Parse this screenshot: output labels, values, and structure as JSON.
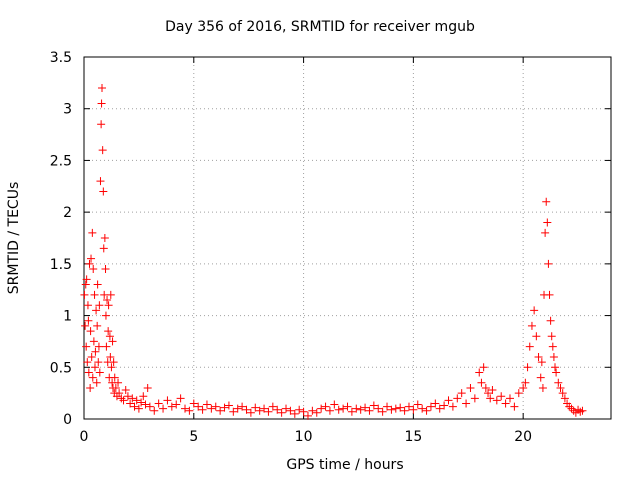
{
  "chart_data": {
    "type": "scatter",
    "title": "Day 356 of 2016, SRMTID for receiver mgub",
    "xlabel": "GPS time / hours",
    "ylabel": "SRMTID / TECUs",
    "xlim": [
      0,
      24
    ],
    "ylim": [
      0,
      3.5
    ],
    "xticks": [
      0,
      5,
      10,
      15,
      20
    ],
    "yticks": [
      0,
      0.5,
      1,
      1.5,
      2,
      2.5,
      3,
      3.5
    ],
    "ytick_labels": [
      "0",
      "0.5",
      "1",
      "1.5",
      "2",
      "2.5",
      "3",
      "3.5"
    ],
    "grid": true,
    "marker": "+",
    "color": "#ff0000",
    "series": [
      {
        "x": [
          0.02,
          0.05,
          0.08,
          0.1,
          0.12,
          0.15,
          0.18,
          0.2,
          0.22,
          0.25,
          0.28,
          0.3,
          0.32,
          0.35,
          0.38,
          0.4,
          0.42,
          0.45,
          0.48,
          0.5,
          0.52,
          0.55,
          0.58,
          0.6,
          0.62,
          0.65,
          0.68,
          0.7,
          0.72,
          0.75,
          0.78,
          0.8,
          0.82,
          0.85,
          0.88,
          0.9,
          0.92,
          0.95,
          0.98,
          1.0,
          1.02,
          1.05,
          1.08,
          1.1,
          1.12,
          1.15,
          1.18,
          1.2,
          1.22,
          1.25,
          1.28,
          1.3,
          1.32,
          1.35,
          1.38,
          1.4,
          1.45,
          1.5,
          1.55,
          1.6,
          1.7,
          1.8,
          1.9,
          2.0,
          2.1,
          2.2,
          2.3,
          2.4,
          2.5,
          2.6,
          2.7,
          2.8,
          2.9,
          3.0,
          3.2,
          3.4,
          3.6,
          3.8,
          4.0,
          4.2,
          4.4,
          4.6,
          4.8,
          5.0,
          5.2,
          5.4,
          5.6,
          5.8,
          6.0,
          6.2,
          6.4,
          6.6,
          6.8,
          7.0,
          7.2,
          7.4,
          7.6,
          7.8,
          8.0,
          8.2,
          8.4,
          8.6,
          8.8,
          9.0,
          9.2,
          9.4,
          9.6,
          9.8,
          10.0,
          10.2,
          10.4,
          10.6,
          10.8,
          11.0,
          11.2,
          11.4,
          11.6,
          11.8,
          12.0,
          12.2,
          12.4,
          12.6,
          12.8,
          13.0,
          13.2,
          13.4,
          13.6,
          13.8,
          14.0,
          14.2,
          14.4,
          14.6,
          14.8,
          15.0,
          15.2,
          15.4,
          15.6,
          15.8,
          16.0,
          16.2,
          16.4,
          16.6,
          16.8,
          17.0,
          17.2,
          17.4,
          17.6,
          17.8,
          18.0,
          18.1,
          18.2,
          18.3,
          18.4,
          18.5,
          18.6,
          18.8,
          19.0,
          19.2,
          19.4,
          19.6,
          19.8,
          20.0,
          20.1,
          20.2,
          20.3,
          20.4,
          20.5,
          20.6,
          20.7,
          20.8,
          20.85,
          20.9,
          20.95,
          21.0,
          21.05,
          21.1,
          21.15,
          21.2,
          21.25,
          21.3,
          21.35,
          21.4,
          21.45,
          21.5,
          21.6,
          21.7,
          21.8,
          21.9,
          22.0,
          22.1,
          22.2,
          22.3,
          22.4,
          22.5,
          22.6,
          22.7
        ],
        "y": [
          1.2,
          0.9,
          1.3,
          0.7,
          1.35,
          0.55,
          1.1,
          0.95,
          0.45,
          1.5,
          0.3,
          0.85,
          1.55,
          0.6,
          1.8,
          0.4,
          1.45,
          0.75,
          1.2,
          0.5,
          0.65,
          1.05,
          0.35,
          0.9,
          1.3,
          0.55,
          0.7,
          1.1,
          0.45,
          2.3,
          2.85,
          3.05,
          3.2,
          2.6,
          2.2,
          1.65,
          1.2,
          1.75,
          1.45,
          1.0,
          0.7,
          1.15,
          0.55,
          0.85,
          1.1,
          0.4,
          0.8,
          0.6,
          1.2,
          0.5,
          0.35,
          0.75,
          0.3,
          0.55,
          0.25,
          0.4,
          0.3,
          0.22,
          0.35,
          0.25,
          0.2,
          0.18,
          0.28,
          0.22,
          0.15,
          0.2,
          0.12,
          0.18,
          0.1,
          0.16,
          0.22,
          0.14,
          0.3,
          0.12,
          0.08,
          0.15,
          0.1,
          0.18,
          0.12,
          0.14,
          0.2,
          0.1,
          0.08,
          0.15,
          0.12,
          0.09,
          0.14,
          0.1,
          0.12,
          0.08,
          0.11,
          0.13,
          0.07,
          0.1,
          0.12,
          0.09,
          0.06,
          0.11,
          0.08,
          0.1,
          0.07,
          0.12,
          0.09,
          0.06,
          0.1,
          0.08,
          0.05,
          0.09,
          0.07,
          0.03,
          0.08,
          0.06,
          0.1,
          0.12,
          0.08,
          0.14,
          0.09,
          0.1,
          0.12,
          0.07,
          0.1,
          0.09,
          0.11,
          0.08,
          0.13,
          0.1,
          0.07,
          0.12,
          0.09,
          0.1,
          0.11,
          0.08,
          0.12,
          0.09,
          0.14,
          0.1,
          0.08,
          0.12,
          0.15,
          0.1,
          0.13,
          0.18,
          0.12,
          0.2,
          0.25,
          0.15,
          0.3,
          0.2,
          0.45,
          0.35,
          0.5,
          0.3,
          0.25,
          0.2,
          0.28,
          0.18,
          0.22,
          0.15,
          0.2,
          0.12,
          0.25,
          0.3,
          0.35,
          0.5,
          0.7,
          0.9,
          1.05,
          0.8,
          0.6,
          0.4,
          0.55,
          0.3,
          1.2,
          1.8,
          2.1,
          1.9,
          1.5,
          1.2,
          0.95,
          0.8,
          0.7,
          0.6,
          0.5,
          0.45,
          0.35,
          0.3,
          0.25,
          0.2,
          0.15,
          0.12,
          0.1,
          0.08,
          0.06,
          0.09,
          0.07,
          0.08
        ]
      }
    ]
  }
}
